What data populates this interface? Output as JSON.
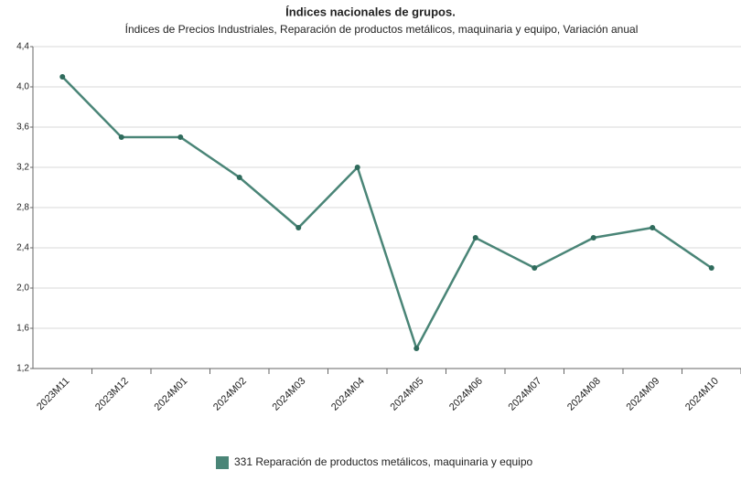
{
  "chart_data": {
    "type": "line",
    "title": "Índices nacionales de grupos.",
    "subtitle": "Índices de Precios Industriales, Reparación de productos metálicos, maquinaria y equipo, Variación anual",
    "categories": [
      "2023M11",
      "2023M12",
      "2024M01",
      "2024M02",
      "2024M03",
      "2024M04",
      "2024M05",
      "2024M06",
      "2024M07",
      "2024M08",
      "2024M09",
      "2024M10"
    ],
    "series": [
      {
        "name": "331 Reparación de productos metálicos, maquinaria y equipo",
        "color": "#4a8577",
        "values": [
          4.1,
          3.5,
          3.5,
          3.1,
          2.6,
          3.2,
          1.4,
          2.5,
          2.2,
          2.5,
          2.6,
          2.2
        ]
      }
    ],
    "ylim": [
      1.2,
      4.4
    ],
    "yticks": [
      {
        "value": 1.2,
        "label": "1,2"
      },
      {
        "value": 1.6,
        "label": "1,6"
      },
      {
        "value": 2.0,
        "label": "2,0"
      },
      {
        "value": 2.4,
        "label": "2,4"
      },
      {
        "value": 2.8,
        "label": "2,8"
      },
      {
        "value": 3.2,
        "label": "3,2"
      },
      {
        "value": 3.6,
        "label": "3,6"
      },
      {
        "value": 4.0,
        "label": "4,0"
      },
      {
        "value": 4.4,
        "label": "4,4"
      }
    ],
    "grid": true,
    "legend": "bottom"
  }
}
